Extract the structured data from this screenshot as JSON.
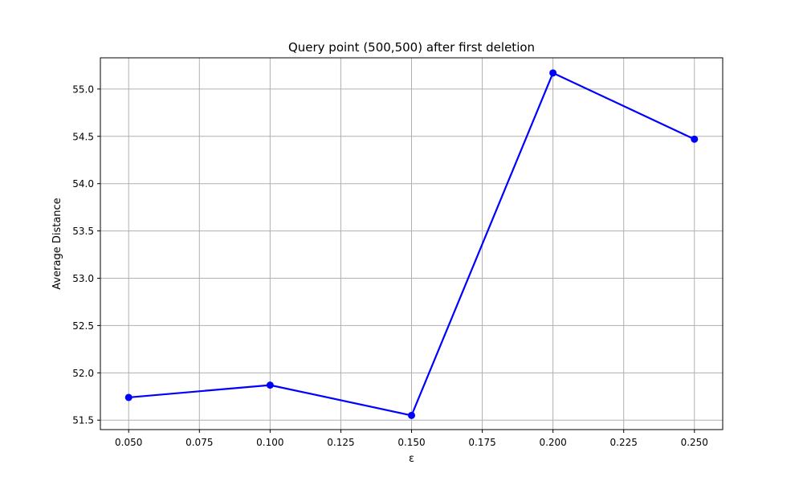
{
  "chart_data": {
    "type": "line",
    "title": "Query point (500,500) after first deletion",
    "xlabel": "ε",
    "ylabel": "Average Distance",
    "x": [
      0.05,
      0.1,
      0.15,
      0.2,
      0.25
    ],
    "series": [
      {
        "values": [
          51.74,
          51.87,
          51.55,
          55.17,
          54.47
        ],
        "color": "#0000ff",
        "marker": "circle"
      }
    ],
    "xlim": [
      0.04,
      0.26
    ],
    "ylim": [
      51.4,
      55.33
    ],
    "xticks": [
      "0.050",
      "0.075",
      "0.100",
      "0.125",
      "0.150",
      "0.175",
      "0.200",
      "0.225",
      "0.250"
    ],
    "yticks": [
      "51.5",
      "52.0",
      "52.5",
      "53.0",
      "53.5",
      "54.0",
      "54.5",
      "55.0"
    ],
    "grid": true,
    "grid_color": "#b0b0b0"
  }
}
